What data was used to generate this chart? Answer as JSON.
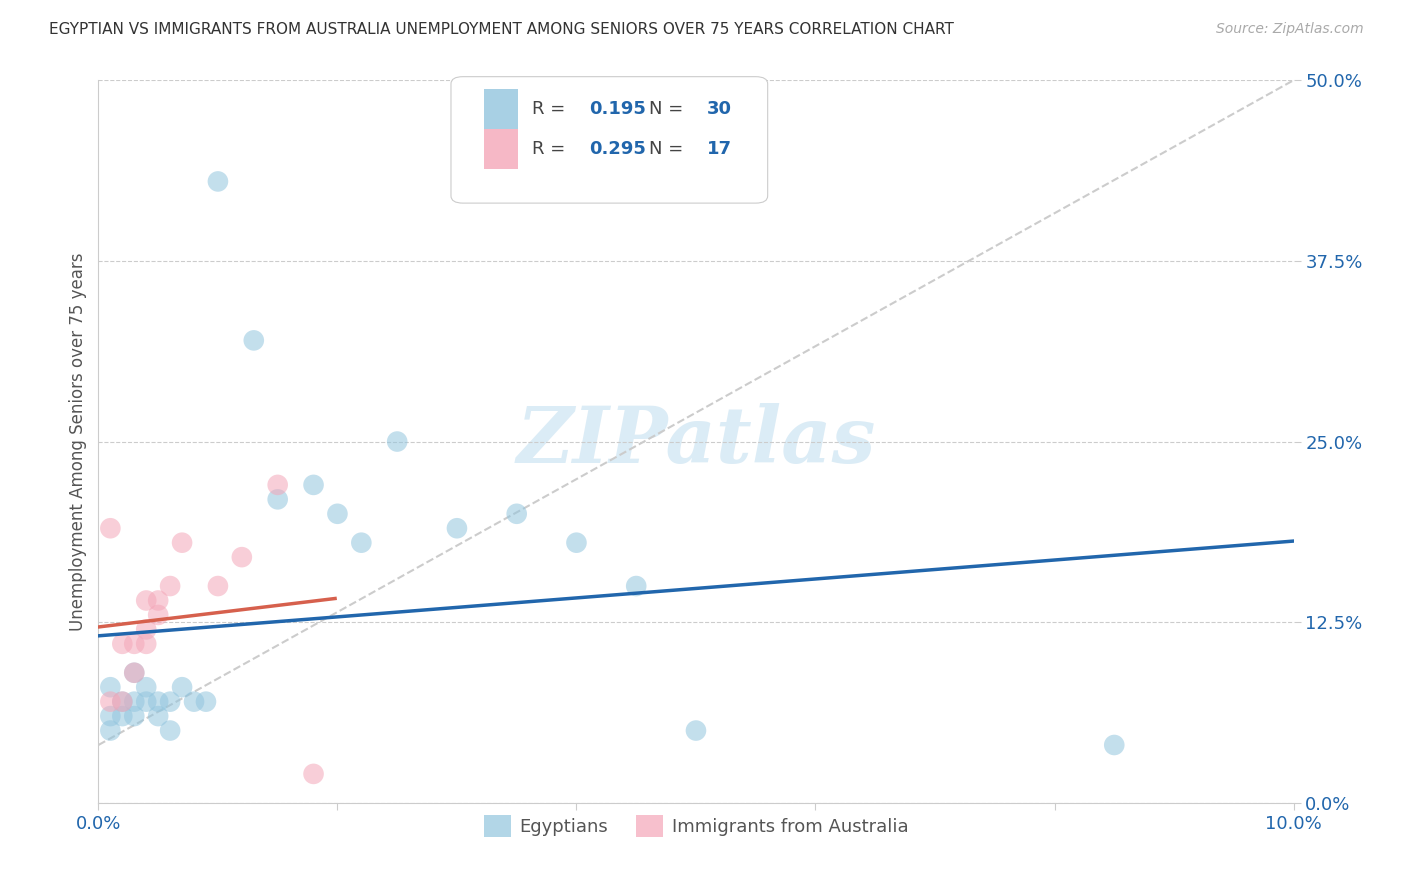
{
  "title": "EGYPTIAN VS IMMIGRANTS FROM AUSTRALIA UNEMPLOYMENT AMONG SENIORS OVER 75 YEARS CORRELATION CHART",
  "source": "Source: ZipAtlas.com",
  "ylabel": "Unemployment Among Seniors over 75 years",
  "xlim": [
    0.0,
    0.1
  ],
  "ylim": [
    0.0,
    0.5
  ],
  "xticks": [
    0.0,
    0.02,
    0.04,
    0.06,
    0.08,
    0.1
  ],
  "xtick_labels": [
    "0.0%",
    "",
    "",
    "",
    "",
    "10.0%"
  ],
  "ytick_labels_right": [
    "0.0%",
    "12.5%",
    "25.0%",
    "37.5%",
    "50.0%"
  ],
  "yticks_right": [
    0.0,
    0.125,
    0.25,
    0.375,
    0.5
  ],
  "R1": "0.195",
  "N1": "30",
  "R2": "0.295",
  "N2": "17",
  "egyptian_color": "#92c5de",
  "australia_color": "#f4a6b8",
  "line_egyptian_color": "#2166ac",
  "line_australia_color": "#d6604d",
  "dashed_line_color": "#cccccc",
  "watermark": "ZIPatlas",
  "background_color": "#ffffff",
  "egyptians_x": [
    0.001,
    0.001,
    0.001,
    0.002,
    0.002,
    0.003,
    0.003,
    0.003,
    0.004,
    0.004,
    0.005,
    0.005,
    0.006,
    0.006,
    0.007,
    0.008,
    0.009,
    0.01,
    0.013,
    0.015,
    0.018,
    0.02,
    0.022,
    0.025,
    0.03,
    0.035,
    0.04,
    0.045,
    0.05,
    0.085
  ],
  "egyptians_y": [
    0.06,
    0.08,
    0.05,
    0.06,
    0.07,
    0.07,
    0.09,
    0.06,
    0.08,
    0.07,
    0.07,
    0.06,
    0.07,
    0.05,
    0.08,
    0.07,
    0.07,
    0.43,
    0.32,
    0.21,
    0.22,
    0.2,
    0.18,
    0.25,
    0.19,
    0.2,
    0.18,
    0.15,
    0.05,
    0.04
  ],
  "australia_x": [
    0.001,
    0.001,
    0.002,
    0.002,
    0.003,
    0.003,
    0.004,
    0.004,
    0.004,
    0.005,
    0.005,
    0.006,
    0.007,
    0.01,
    0.012,
    0.015,
    0.018
  ],
  "australia_y": [
    0.19,
    0.07,
    0.11,
    0.07,
    0.09,
    0.11,
    0.11,
    0.12,
    0.14,
    0.13,
    0.14,
    0.15,
    0.18,
    0.15,
    0.17,
    0.22,
    0.02
  ]
}
